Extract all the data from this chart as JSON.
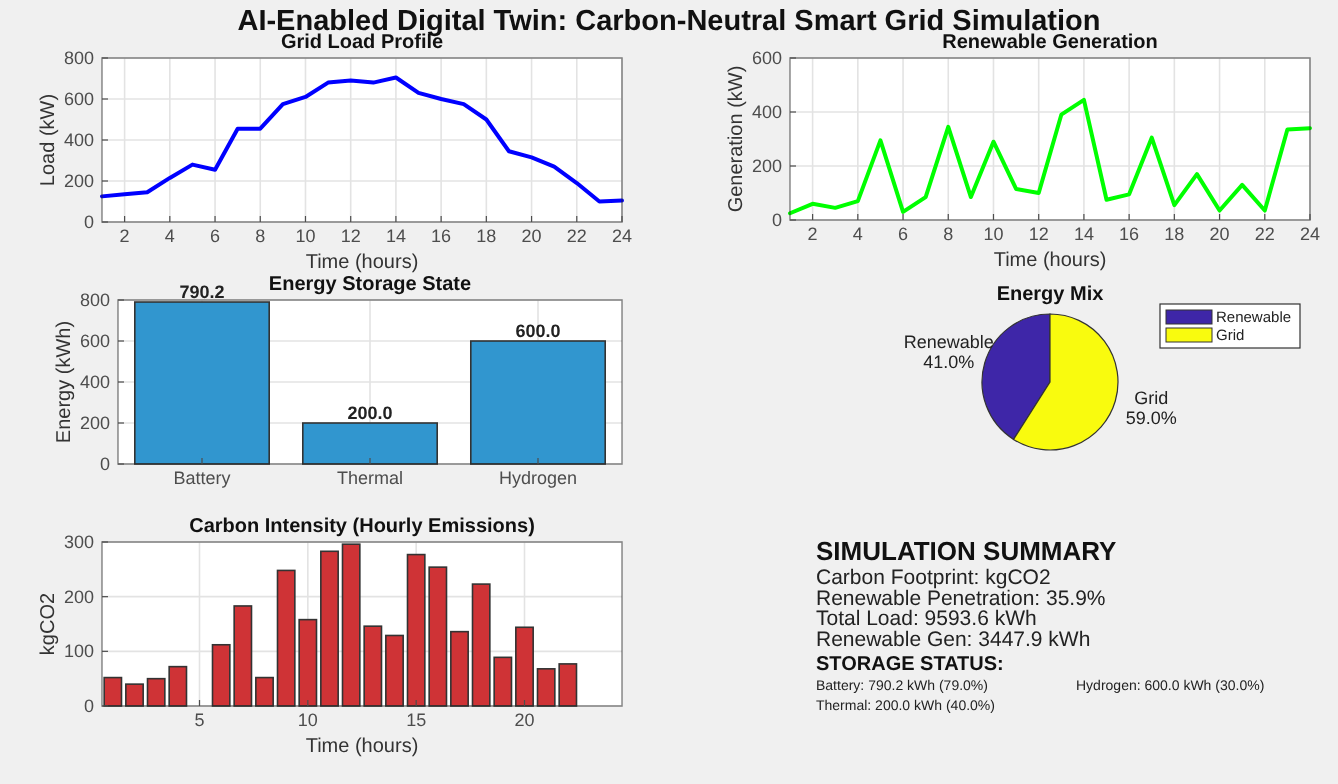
{
  "chart_data": [
    {
      "type": "other",
      "title": "AI-Enabled Digital Twin: Carbon-Neutral Smart Grid Simulation"
    },
    {
      "type": "line",
      "title": "Grid Load Profile",
      "xlabel": "Time (hours)",
      "ylabel": "Load (kW)",
      "x": [
        1,
        2,
        3,
        4,
        5,
        6,
        7,
        8,
        9,
        10,
        11,
        12,
        13,
        14,
        15,
        16,
        17,
        18,
        19,
        20,
        21,
        22,
        23,
        24
      ],
      "series": [
        {
          "color": "#0000ff",
          "values": [
            125,
            135,
            145,
            215,
            280,
            255,
            455,
            455,
            575,
            610,
            680,
            690,
            680,
            705,
            630,
            600,
            575,
            500,
            345,
            315,
            270,
            190,
            100,
            105
          ]
        }
      ],
      "xlim": [
        1,
        24
      ],
      "xticks": [
        2,
        4,
        6,
        8,
        10,
        12,
        14,
        16,
        18,
        20,
        22,
        24
      ],
      "ylim": [
        0,
        800
      ],
      "yticks": [
        0,
        200,
        400,
        600,
        800
      ],
      "grid": true
    },
    {
      "type": "line",
      "title": "Renewable Generation",
      "xlabel": "Time (hours)",
      "ylabel": "Generation (kW)",
      "x": [
        1,
        2,
        3,
        4,
        5,
        6,
        7,
        8,
        9,
        10,
        11,
        12,
        13,
        14,
        15,
        16,
        17,
        18,
        19,
        20,
        21,
        22,
        23,
        24
      ],
      "series": [
        {
          "color": "#00ff00",
          "values": [
            25,
            60,
            45,
            70,
            295,
            30,
            85,
            345,
            85,
            290,
            115,
            100,
            390,
            445,
            75,
            95,
            305,
            55,
            170,
            35,
            130,
            35,
            335,
            340
          ]
        }
      ],
      "xlim": [
        1,
        24
      ],
      "xticks": [
        2,
        4,
        6,
        8,
        10,
        12,
        14,
        16,
        18,
        20,
        22,
        24
      ],
      "ylim": [
        0,
        600
      ],
      "yticks": [
        0,
        200,
        400,
        600
      ],
      "grid": true
    },
    {
      "type": "bar",
      "title": "Energy Storage State",
      "ylabel": "Energy (kWh)",
      "categories": [
        "Battery",
        "Thermal",
        "Hydrogen"
      ],
      "values": [
        790.2,
        200.0,
        600.0
      ],
      "value_labels": [
        "790.2",
        "200.0",
        "600.0"
      ],
      "color": "#3196cf",
      "ylim": [
        0,
        800
      ],
      "yticks": [
        0,
        200,
        400,
        600,
        800
      ],
      "grid": true
    },
    {
      "type": "pie",
      "title": "Energy Mix",
      "categories": [
        "Renewable",
        "Grid"
      ],
      "values": [
        41.0,
        59.0
      ],
      "value_labels": [
        "41.0%",
        "59.0%"
      ],
      "colors": [
        "#3e26a8",
        "#f9fb0e"
      ],
      "legend": "top right"
    },
    {
      "type": "bar",
      "title": "Carbon Intensity (Hourly Emissions)",
      "xlabel": "Time (hours)",
      "ylabel": "kgCO2",
      "x": [
        1,
        2,
        3,
        4,
        5,
        6,
        7,
        8,
        9,
        10,
        11,
        12,
        13,
        14,
        15,
        16,
        17,
        18,
        19,
        20,
        21,
        22,
        23,
        24
      ],
      "values": [
        52,
        40,
        50,
        72,
        0,
        112,
        183,
        52,
        248,
        158,
        283,
        296,
        146,
        129,
        277,
        254,
        136,
        223,
        89,
        144,
        68,
        77,
        0,
        0
      ],
      "color": "#cf3336",
      "xlim": [
        0.5,
        24.5
      ],
      "xticks": [
        5,
        10,
        15,
        20
      ],
      "ylim": [
        0,
        300
      ],
      "yticks": [
        0,
        100,
        200,
        300
      ],
      "grid": true
    },
    {
      "type": "other",
      "title": "SIMULATION SUMMARY",
      "annotations": [
        "Carbon Footprint:  kgCO2",
        "Renewable Penetration: 35.9%",
        "Total Load: 9593.6 kWh",
        "Renewable Gen: 3447.9 kWh"
      ]
    },
    {
      "type": "other",
      "title": "STORAGE STATUS:",
      "annotations": [
        "Battery: 790.2 kWh (79.0%)",
        "Thermal: 200.0 kWh (40.0%)",
        "Hydrogen: 600.0 kWh (30.0%)"
      ]
    }
  ]
}
